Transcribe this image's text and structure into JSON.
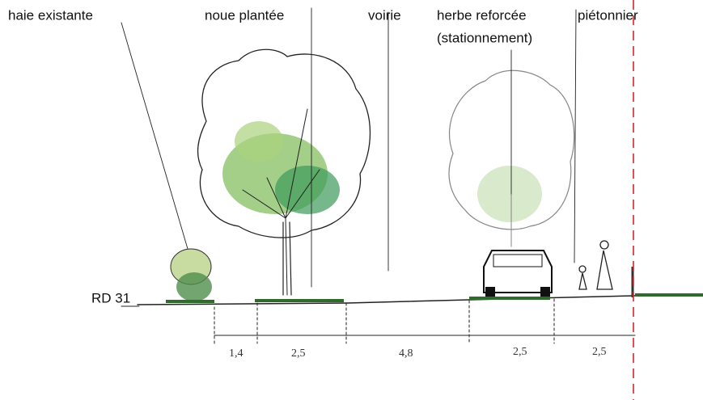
{
  "labels": {
    "haie": "haie existante",
    "noue": "noue plantée",
    "voirie": "voirie",
    "herbe": "herbe reforcée",
    "stationnement": "(stationnement)",
    "pietonnier": "piétonnier",
    "road": "RD 31"
  },
  "dimensions": [
    "1,4",
    "2,5",
    "4,8",
    "2,5",
    "2,5"
  ]
}
